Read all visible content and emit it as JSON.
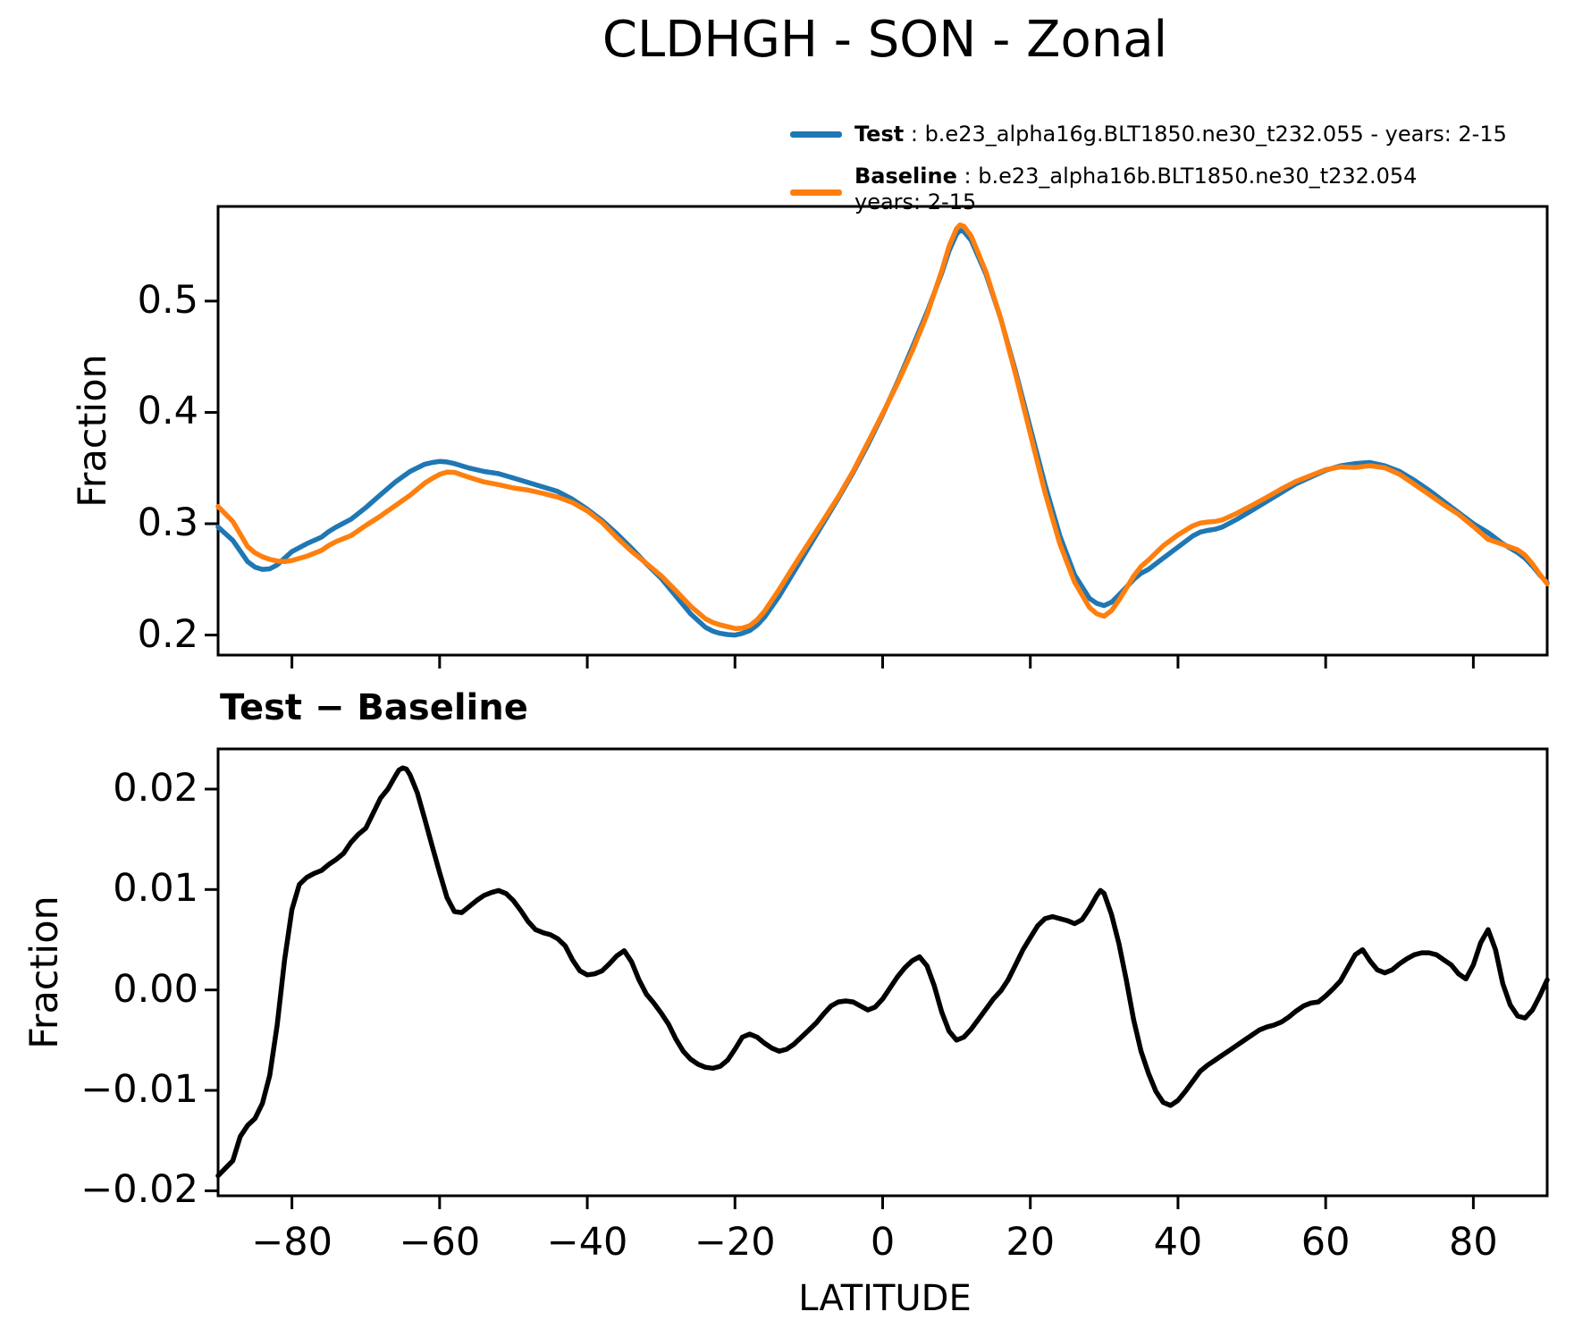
{
  "title": "CLDHGH - SON - Zonal",
  "colors": {
    "test": "#1f77b4",
    "baseline": "#ff7f0e",
    "diff": "#000000",
    "frame": "#000000"
  },
  "legend": {
    "test_label": "Test",
    "test_desc": " : b.e23_alpha16g.BLT1850.ne30_t232.055 - years: 2-15",
    "baseline_label": "Baseline",
    "baseline_desc": " : b.e23_alpha16b.BLT1850.ne30_t232.054",
    "baseline_desc2": "years: 2-15"
  },
  "panels": {
    "top": {
      "ylabel": "Fraction",
      "ytick_labels": [
        "0.5",
        "0.4",
        "0.3",
        "0.2"
      ],
      "ytick_values": [
        0.5,
        0.4,
        0.3,
        0.2
      ]
    },
    "bottom": {
      "title": "Test − Baseline",
      "ylabel": "Fraction",
      "xlabel": "LATITUDE",
      "ytick_labels": [
        "0.02",
        "0.01",
        "0.00",
        "−0.01",
        "−0.02"
      ],
      "ytick_values": [
        0.02,
        0.01,
        0.0,
        -0.01,
        -0.02
      ],
      "xtick_labels": [
        "−80",
        "−60",
        "−40",
        "−20",
        "0",
        "20",
        "40",
        "60",
        "80"
      ],
      "xtick_values": [
        -80,
        -60,
        -40,
        -20,
        0,
        20,
        40,
        60,
        80
      ]
    }
  },
  "chart_data": [
    {
      "id": "zonal-mean",
      "type": "line",
      "title": "CLDHGH - SON - Zonal",
      "xlabel": "",
      "ylabel": "Fraction",
      "xlim": [
        -90,
        90
      ],
      "ylim": [
        0.182,
        0.585
      ],
      "xticks": [
        -80,
        -60,
        -40,
        -20,
        0,
        20,
        40,
        60,
        80
      ],
      "yticks": [
        0.5,
        0.4,
        0.3,
        0.2
      ],
      "legend_position": "above-right",
      "grid": false,
      "series": [
        {
          "name": "Test: b.e23_alpha16g.BLT1850.ne30_t232.055 - years: 2-15",
          "color": "#1f77b4",
          "x": [
            -90,
            -88,
            -86,
            -85,
            -84,
            -83,
            -82,
            -81,
            -80,
            -78,
            -76,
            -75,
            -74,
            -72,
            -70,
            -68,
            -66,
            -64,
            -62,
            -61,
            -60,
            -59,
            -58,
            -56,
            -54,
            -52,
            -50,
            -48,
            -46,
            -45,
            -44,
            -42,
            -40,
            -38,
            -36,
            -34,
            -32,
            -30,
            -28,
            -26,
            -24,
            -23,
            -22,
            -21,
            -20,
            -19,
            -18,
            -17,
            -16,
            -14,
            -12,
            -10,
            -8,
            -6,
            -4,
            -2,
            0,
            2,
            4,
            6,
            8,
            9,
            10,
            10.5,
            11,
            12,
            14,
            16,
            18,
            20,
            22,
            24,
            26,
            28,
            29,
            30,
            31,
            32,
            34,
            35,
            36,
            38,
            40,
            42,
            43,
            44,
            45,
            46,
            48,
            50,
            52,
            54,
            56,
            58,
            60,
            62,
            64,
            66,
            68,
            70,
            72,
            74,
            76,
            78,
            80,
            82,
            84,
            86,
            87,
            88,
            89,
            90
          ],
          "y": [
            0.297,
            0.285,
            0.266,
            0.261,
            0.259,
            0.2595,
            0.263,
            0.269,
            0.275,
            0.282,
            0.288,
            0.293,
            0.297,
            0.304,
            0.3145,
            0.326,
            0.3375,
            0.347,
            0.3535,
            0.355,
            0.356,
            0.3555,
            0.354,
            0.35,
            0.347,
            0.345,
            0.341,
            0.337,
            0.333,
            0.331,
            0.329,
            0.322,
            0.313,
            0.303,
            0.291,
            0.278,
            0.264,
            0.251,
            0.235,
            0.219,
            0.207,
            0.2035,
            0.2015,
            0.2005,
            0.2,
            0.2015,
            0.204,
            0.209,
            0.216,
            0.235,
            0.257,
            0.279,
            0.301,
            0.323,
            0.346,
            0.371,
            0.398,
            0.427,
            0.458,
            0.49,
            0.525,
            0.545,
            0.56,
            0.5635,
            0.5625,
            0.5545,
            0.524,
            0.484,
            0.437,
            0.386,
            0.335,
            0.289,
            0.254,
            0.233,
            0.2285,
            0.2265,
            0.2295,
            0.236,
            0.25,
            0.2555,
            0.259,
            0.269,
            0.279,
            0.289,
            0.2925,
            0.294,
            0.295,
            0.297,
            0.304,
            0.312,
            0.32,
            0.328,
            0.336,
            0.342,
            0.348,
            0.352,
            0.354,
            0.355,
            0.352,
            0.347,
            0.339,
            0.33,
            0.32,
            0.31,
            0.3,
            0.292,
            0.282,
            0.274,
            0.269,
            0.262,
            0.254,
            0.247
          ]
        },
        {
          "name": "Baseline: b.e23_alpha16b.BLT1850.ne30_t232.054 years: 2-15",
          "color": "#ff7f0e",
          "x": [
            -90,
            -88,
            -86,
            -85,
            -84,
            -83,
            -82,
            -81,
            -80,
            -78,
            -76,
            -75,
            -74,
            -72,
            -70,
            -68,
            -66,
            -64,
            -62,
            -61,
            -60,
            -59,
            -58,
            -56,
            -54,
            -52,
            -50,
            -48,
            -46,
            -45,
            -44,
            -42,
            -40,
            -38,
            -36,
            -34,
            -32,
            -30,
            -28,
            -26,
            -24,
            -23,
            -22,
            -21,
            -20,
            -19,
            -18,
            -17,
            -16,
            -14,
            -12,
            -10,
            -8,
            -6,
            -4,
            -2,
            0,
            2,
            4,
            6,
            8,
            9,
            10,
            10.5,
            11,
            12,
            14,
            16,
            18,
            20,
            22,
            24,
            26,
            28,
            29,
            30,
            31,
            32,
            34,
            35,
            36,
            38,
            40,
            42,
            43,
            44,
            45,
            46,
            48,
            50,
            52,
            54,
            56,
            58,
            60,
            62,
            64,
            66,
            68,
            70,
            72,
            74,
            76,
            78,
            80,
            82,
            84,
            86,
            87,
            88,
            89,
            90
          ],
          "y": [
            0.3155,
            0.302,
            0.2795,
            0.2738,
            0.2703,
            0.268,
            0.2665,
            0.266,
            0.267,
            0.2708,
            0.2761,
            0.2805,
            0.284,
            0.2893,
            0.2984,
            0.3069,
            0.3162,
            0.3256,
            0.3365,
            0.3407,
            0.3443,
            0.3463,
            0.3462,
            0.3417,
            0.3376,
            0.3351,
            0.3321,
            0.3302,
            0.3273,
            0.3255,
            0.3239,
            0.319,
            0.3115,
            0.3011,
            0.2876,
            0.2752,
            0.2644,
            0.2533,
            0.2399,
            0.2259,
            0.2147,
            0.2113,
            0.2091,
            0.2075,
            0.2059,
            0.2062,
            0.2084,
            0.2137,
            0.2213,
            0.2411,
            0.2624,
            0.283,
            0.3034,
            0.3242,
            0.3472,
            0.373,
            0.3989,
            0.4257,
            0.4551,
            0.4876,
            0.5272,
            0.5491,
            0.565,
            0.5684,
            0.5672,
            0.5584,
            0.5259,
            0.4841,
            0.4345,
            0.3808,
            0.3279,
            0.2819,
            0.2474,
            0.2249,
            0.2191,
            0.2169,
            0.222,
            0.2314,
            0.253,
            0.2616,
            0.2673,
            0.2802,
            0.29,
            0.2981,
            0.3006,
            0.3015,
            0.302,
            0.3035,
            0.3095,
            0.3165,
            0.3237,
            0.3312,
            0.3381,
            0.3433,
            0.3486,
            0.3511,
            0.3505,
            0.3521,
            0.3503,
            0.3444,
            0.3355,
            0.3263,
            0.317,
            0.3084,
            0.2975,
            0.286,
            0.2814,
            0.2766,
            0.2718,
            0.264,
            0.2546,
            0.246
          ]
        }
      ]
    },
    {
      "id": "difference",
      "type": "line",
      "title": "Test − Baseline",
      "xlabel": "LATITUDE",
      "ylabel": "Fraction",
      "xlim": [
        -90,
        90
      ],
      "ylim": [
        -0.0205,
        0.024
      ],
      "xticks": [
        -80,
        -60,
        -40,
        -20,
        0,
        20,
        40,
        60,
        80
      ],
      "yticks": [
        0.02,
        0.01,
        0.0,
        -0.01,
        -0.02
      ],
      "grid": false,
      "series": [
        {
          "name": "Test − Baseline",
          "color": "#000000",
          "x": [
            -90,
            -88,
            -87,
            -86,
            -85,
            -84,
            -83,
            -82,
            -81,
            -80,
            -79,
            -78,
            -77,
            -76,
            -75,
            -74,
            -73,
            -72,
            -71,
            -70,
            -69,
            -68,
            -67,
            -66,
            -65.5,
            -65,
            -64.5,
            -64,
            -63,
            -62,
            -61,
            -60,
            -59,
            -58,
            -57,
            -56,
            -55,
            -54,
            -53,
            -52,
            -51,
            -50,
            -49,
            -48,
            -47,
            -46,
            -45,
            -44,
            -43,
            -42,
            -41,
            -40,
            -39,
            -38,
            -37,
            -36,
            -35,
            -34,
            -33,
            -32,
            -31,
            -30,
            -29,
            -28,
            -27,
            -26,
            -25,
            -24,
            -23,
            -22,
            -21,
            -20,
            -19,
            -18,
            -17,
            -16,
            -15,
            -14,
            -13,
            -12,
            -11,
            -10,
            -9,
            -8,
            -7,
            -6,
            -5,
            -4,
            -3,
            -2,
            -1,
            0,
            1,
            2,
            3,
            4,
            5,
            6,
            7,
            8,
            9,
            10,
            11,
            12,
            13,
            14,
            15,
            16,
            17,
            18,
            19,
            20,
            21,
            22,
            23,
            24,
            25,
            26,
            27,
            28,
            29,
            29.5,
            30,
            31,
            32,
            33,
            34,
            35,
            36,
            37,
            38,
            39,
            40,
            41,
            42,
            43,
            44,
            45,
            46,
            47,
            48,
            49,
            50,
            51,
            52,
            53,
            54,
            55,
            56,
            57,
            58,
            59,
            60,
            61,
            62,
            63,
            64,
            65,
            66,
            67,
            68,
            69,
            70,
            71,
            72,
            73,
            74,
            75,
            76,
            77,
            78,
            79,
            80,
            81,
            82,
            83,
            84,
            85,
            86,
            87,
            88,
            89,
            90
          ],
          "y": [
            -0.0185,
            -0.017,
            -0.0146,
            -0.0135,
            -0.0128,
            -0.0113,
            -0.0085,
            -0.0035,
            0.003,
            0.008,
            0.0105,
            0.0112,
            0.0116,
            0.0119,
            0.0125,
            0.013,
            0.0136,
            0.0147,
            0.0155,
            0.0161,
            0.0176,
            0.0191,
            0.02,
            0.0213,
            0.0219,
            0.0221,
            0.022,
            0.0214,
            0.0196,
            0.017,
            0.0143,
            0.0117,
            0.0092,
            0.0078,
            0.0077,
            0.0083,
            0.0089,
            0.0094,
            0.0097,
            0.0099,
            0.0096,
            0.0089,
            0.0079,
            0.0068,
            0.006,
            0.0057,
            0.0055,
            0.0051,
            0.0044,
            0.003,
            0.0019,
            0.0015,
            0.0016,
            0.0019,
            0.0026,
            0.0034,
            0.0039,
            0.0028,
            0.001,
            -0.0004,
            -0.0013,
            -0.0023,
            -0.0034,
            -0.0049,
            -0.0061,
            -0.0069,
            -0.0074,
            -0.0077,
            -0.0078,
            -0.0076,
            -0.007,
            -0.0059,
            -0.0047,
            -0.0044,
            -0.0047,
            -0.0053,
            -0.0058,
            -0.0061,
            -0.0059,
            -0.0054,
            -0.0047,
            -0.004,
            -0.0033,
            -0.0024,
            -0.0016,
            -0.0012,
            -0.0011,
            -0.0012,
            -0.0016,
            -0.002,
            -0.0017,
            -0.0009,
            0.0002,
            0.0013,
            0.0022,
            0.0029,
            0.0033,
            0.0024,
            0.0004,
            -0.0022,
            -0.0041,
            -0.005,
            -0.0047,
            -0.0039,
            -0.0029,
            -0.0019,
            -0.0009,
            -0.0001,
            0.001,
            0.0025,
            0.004,
            0.0052,
            0.0064,
            0.0071,
            0.0073,
            0.0071,
            0.0069,
            0.0066,
            0.007,
            0.0081,
            0.0094,
            0.0099,
            0.0096,
            0.0075,
            0.0046,
            0.001,
            -0.003,
            -0.0061,
            -0.0083,
            -0.0101,
            -0.0112,
            -0.0115,
            -0.011,
            -0.0101,
            -0.0091,
            -0.0081,
            -0.0075,
            -0.007,
            -0.0065,
            -0.006,
            -0.0055,
            -0.005,
            -0.0045,
            -0.004,
            -0.0037,
            -0.0035,
            -0.0032,
            -0.0027,
            -0.0021,
            -0.0016,
            -0.0013,
            -0.0012,
            -0.0006,
            0.0001,
            0.0009,
            0.0022,
            0.0035,
            0.004,
            0.0029,
            0.002,
            0.0017,
            0.002,
            0.0026,
            0.0031,
            0.0035,
            0.0037,
            0.0037,
            0.0035,
            0.003,
            0.0025,
            0.0016,
            0.0011,
            0.0025,
            0.0047,
            0.006,
            0.004,
            0.0006,
            -0.0015,
            -0.0026,
            -0.0028,
            -0.002,
            -0.0006,
            0.001
          ]
        }
      ]
    }
  ]
}
